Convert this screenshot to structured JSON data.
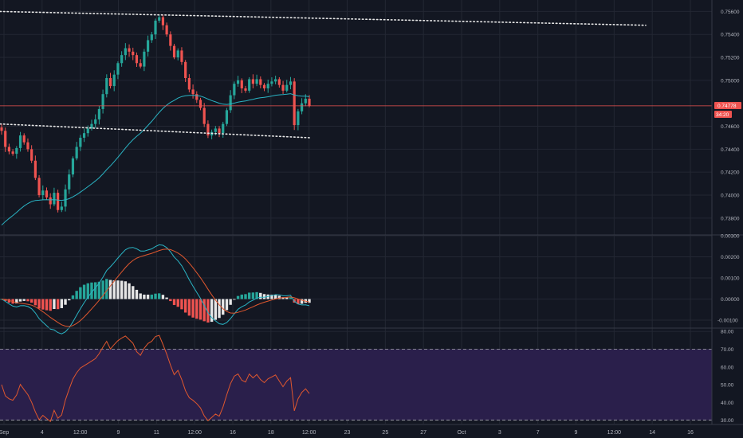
{
  "colors": {
    "background": "#131722",
    "grid": "#232733",
    "up": "#26a69a",
    "down": "#ef5350",
    "ma": "#2ab4c4",
    "macd_line": "#2ab4c4",
    "signal_line": "#e0572e",
    "rsi_line": "#e0572e",
    "rsi_band": "#2a1f4b",
    "price_line": "#ef5350",
    "trendline": "#e8e8e8",
    "hist_up": "#26a69a",
    "hist_up_fade": "#e6e6e6",
    "hist_down": "#ef5350",
    "hist_down_fade": "#e6e6e6",
    "tag_bg": "#ef5350"
  },
  "price_tag": {
    "price": "0.74778",
    "countdown": "34:20"
  },
  "chart_data": [
    {
      "type": "candlestick",
      "name": "price",
      "ylim": [
        0.7366,
        0.757
      ],
      "yticks": [
        "0.73800",
        "0.74000",
        "0.74200",
        "0.74400",
        "0.74600",
        "0.75000",
        "0.75200",
        "0.75400",
        "0.75600"
      ],
      "ytick_values": [
        0.738,
        0.74,
        0.742,
        0.744,
        0.746,
        0.75,
        0.752,
        0.754,
        0.756
      ],
      "last_price": 0.74778,
      "closes": [
        0.7456,
        0.7442,
        0.7438,
        0.7436,
        0.7441,
        0.7452,
        0.7446,
        0.744,
        0.743,
        0.7415,
        0.74,
        0.7404,
        0.7398,
        0.7392,
        0.7402,
        0.7387,
        0.739,
        0.7405,
        0.7418,
        0.7432,
        0.7442,
        0.745,
        0.7454,
        0.7458,
        0.7462,
        0.7466,
        0.7475,
        0.7488,
        0.7502,
        0.7495,
        0.7505,
        0.7515,
        0.7522,
        0.7528,
        0.7525,
        0.7522,
        0.7515,
        0.7512,
        0.7525,
        0.7535,
        0.754,
        0.7552,
        0.7555,
        0.7548,
        0.754,
        0.753,
        0.752,
        0.7526,
        0.7516,
        0.7502,
        0.7492,
        0.7488,
        0.7483,
        0.7476,
        0.7462,
        0.7452,
        0.7455,
        0.7458,
        0.7454,
        0.7462,
        0.7474,
        0.7487,
        0.7497,
        0.75,
        0.7493,
        0.7491,
        0.7501,
        0.7497,
        0.7501,
        0.7496,
        0.7493,
        0.7497,
        0.7499,
        0.7501,
        0.7496,
        0.7491,
        0.7496,
        0.7499,
        0.7461,
        0.7473,
        0.748,
        0.7484,
        0.7478
      ],
      "ma_start": 0.737,
      "trendline_upper": [
        [
          0.756,
          0.7548
        ]
      ],
      "trendline_lower": [
        [
          0.7462,
          0.745
        ]
      ]
    },
    {
      "type": "macd",
      "name": "macd",
      "ylim": [
        -0.0013,
        0.003
      ],
      "yticks": [
        "0.00300",
        "0.00200",
        "0.00100",
        "0.00000",
        "-0.00100"
      ],
      "ytick_values": [
        0.003,
        0.002,
        0.001,
        0,
        -0.001
      ]
    },
    {
      "type": "rsi",
      "name": "rsi",
      "ylim": [
        28,
        81
      ],
      "band": [
        30,
        70
      ],
      "yticks": [
        "80.00",
        "70.00",
        "60.00",
        "50.00",
        "40.00",
        "30.00"
      ],
      "ytick_values": [
        80,
        70,
        60,
        50,
        40,
        30
      ]
    }
  ],
  "x_axis": {
    "labels": [
      "Sep",
      "4",
      "12:00",
      "9",
      "11",
      "12:00",
      "16",
      "18",
      "12:00",
      "23",
      "25",
      "27",
      "Oct",
      "3",
      "7",
      "9",
      "12:00",
      "14",
      "16"
    ]
  }
}
